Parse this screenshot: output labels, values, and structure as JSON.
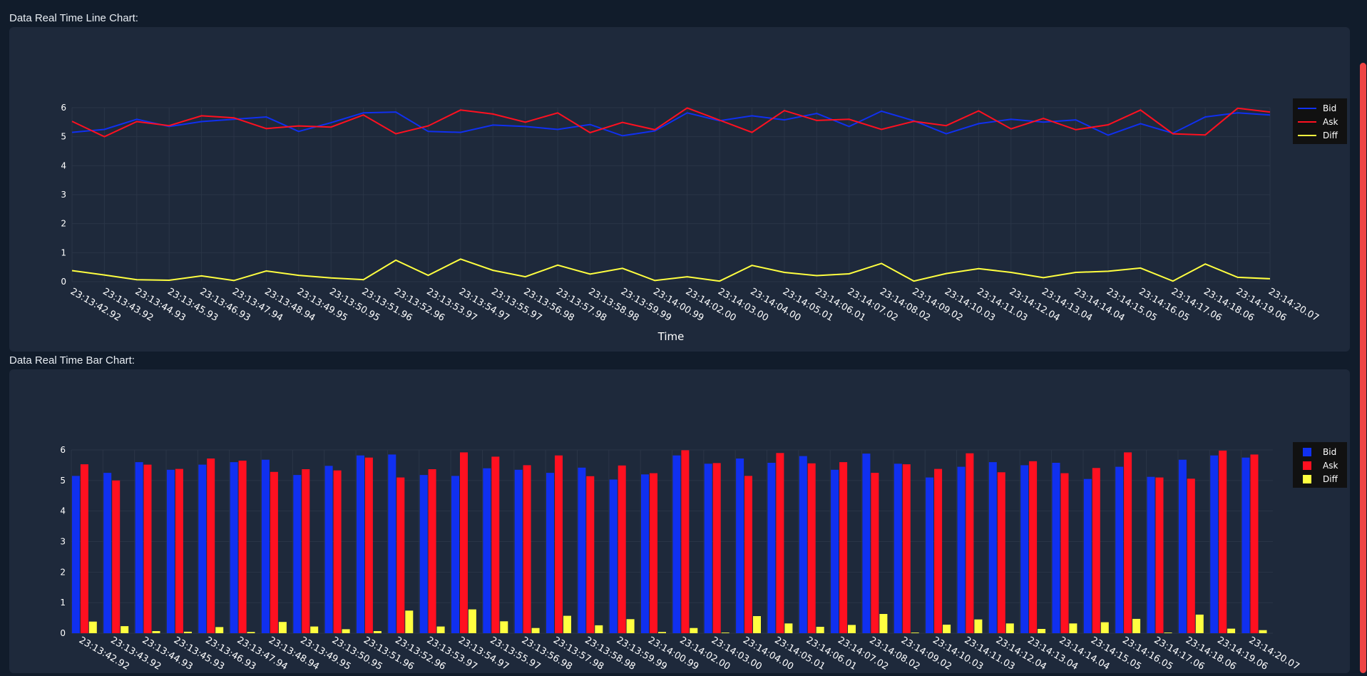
{
  "line_section": {
    "title": "Data Real Time Line Chart:"
  },
  "bar_section": {
    "title": "Data Real Time Bar Chart:"
  },
  "colors": {
    "bid": "#1030f0",
    "ask": "#ff1020",
    "diff": "#ffff40",
    "panel": "#1e293b",
    "page": "#111c2b",
    "scrollbar": "#ef4444"
  },
  "chart_data": [
    {
      "type": "line",
      "title": "",
      "xlabel": "Time",
      "ylabel": "",
      "ylim": [
        0,
        6
      ],
      "grid": true,
      "legend": "right",
      "categories": [
        "23:13:42.92",
        "23:13:43.92",
        "23:13:44.93",
        "23:13:45.93",
        "23:13:46.93",
        "23:13:47.94",
        "23:13:48.94",
        "23:13:49.95",
        "23:13:50.95",
        "23:13:51.96",
        "23:13:52.96",
        "23:13:53.97",
        "23:13:54.97",
        "23:13:55.97",
        "23:13:56.98",
        "23:13:57.98",
        "23:13:58.98",
        "23:13:59.99",
        "23:14:00.99",
        "23:14:02.00",
        "23:14:03.00",
        "23:14:04.00",
        "23:14:05.01",
        "23:14:06.01",
        "23:14:07.02",
        "23:14:08.02",
        "23:14:09.02",
        "23:14:10.03",
        "23:14:11.03",
        "23:14:12.04",
        "23:14:13.04",
        "23:14:14.04",
        "23:14:15.05",
        "23:14:16.05",
        "23:14:17.06",
        "23:14:18.06",
        "23:14:19.06",
        "23:14:20.07"
      ],
      "series": [
        {
          "name": "Bid",
          "values": [
            5.15,
            5.25,
            5.6,
            5.35,
            5.52,
            5.6,
            5.68,
            5.18,
            5.48,
            5.82,
            5.85,
            5.18,
            5.15,
            5.4,
            5.35,
            5.25,
            5.42,
            5.03,
            5.2,
            5.82,
            5.55,
            5.72,
            5.58,
            5.8,
            5.35,
            5.88,
            5.55,
            5.1,
            5.45,
            5.6,
            5.5,
            5.58,
            5.05,
            5.45,
            5.12,
            5.68,
            5.82,
            5.75
          ]
        },
        {
          "name": "Ask",
          "values": [
            5.53,
            5.0,
            5.52,
            5.38,
            5.72,
            5.65,
            5.28,
            5.37,
            5.33,
            5.75,
            5.1,
            5.37,
            5.92,
            5.78,
            5.5,
            5.82,
            5.14,
            5.49,
            5.24,
            5.99,
            5.57,
            5.15,
            5.9,
            5.56,
            5.6,
            5.25,
            5.53,
            5.38,
            5.89,
            5.27,
            5.63,
            5.24,
            5.41,
            5.92,
            5.1,
            5.06,
            5.98,
            5.85
          ]
        },
        {
          "name": "Diff",
          "values": [
            0.38,
            0.23,
            0.07,
            0.05,
            0.2,
            0.04,
            0.37,
            0.22,
            0.13,
            0.07,
            0.74,
            0.22,
            0.78,
            0.39,
            0.17,
            0.57,
            0.26,
            0.46,
            0.04,
            0.17,
            0.02,
            0.56,
            0.32,
            0.21,
            0.27,
            0.63,
            0.02,
            0.28,
            0.45,
            0.32,
            0.14,
            0.32,
            0.36,
            0.47,
            0.02,
            0.61,
            0.15,
            0.1
          ]
        }
      ]
    },
    {
      "type": "bar",
      "title": "",
      "xlabel": "",
      "ylabel": "",
      "ylim": [
        0,
        6
      ],
      "grid": true,
      "legend": "right",
      "categories": [
        "23:13:42.92",
        "23:13:43.92",
        "23:13:44.93",
        "23:13:45.93",
        "23:13:46.93",
        "23:13:47.94",
        "23:13:48.94",
        "23:13:49.95",
        "23:13:50.95",
        "23:13:51.96",
        "23:13:52.96",
        "23:13:53.97",
        "23:13:54.97",
        "23:13:55.97",
        "23:13:56.98",
        "23:13:57.98",
        "23:13:58.98",
        "23:13:59.99",
        "23:14:00.99",
        "23:14:02.00",
        "23:14:03.00",
        "23:14:04.00",
        "23:14:05.01",
        "23:14:06.01",
        "23:14:07.02",
        "23:14:08.02",
        "23:14:09.02",
        "23:14:10.03",
        "23:14:11.03",
        "23:14:12.04",
        "23:14:13.04",
        "23:14:14.04",
        "23:14:15.05",
        "23:14:16.05",
        "23:14:17.06",
        "23:14:18.06",
        "23:14:19.06",
        "23:14:20.07"
      ],
      "series": [
        {
          "name": "Bid",
          "values": [
            5.15,
            5.25,
            5.6,
            5.35,
            5.52,
            5.6,
            5.68,
            5.18,
            5.48,
            5.82,
            5.85,
            5.18,
            5.15,
            5.4,
            5.35,
            5.25,
            5.42,
            5.03,
            5.2,
            5.82,
            5.55,
            5.72,
            5.58,
            5.8,
            5.35,
            5.88,
            5.55,
            5.1,
            5.45,
            5.6,
            5.5,
            5.58,
            5.05,
            5.45,
            5.12,
            5.68,
            5.82,
            5.75
          ]
        },
        {
          "name": "Ask",
          "values": [
            5.53,
            5.0,
            5.52,
            5.38,
            5.72,
            5.65,
            5.28,
            5.37,
            5.33,
            5.75,
            5.1,
            5.37,
            5.92,
            5.78,
            5.5,
            5.82,
            5.14,
            5.49,
            5.24,
            5.99,
            5.57,
            5.15,
            5.9,
            5.56,
            5.6,
            5.25,
            5.53,
            5.38,
            5.89,
            5.27,
            5.63,
            5.24,
            5.41,
            5.92,
            5.1,
            5.06,
            5.98,
            5.85
          ]
        },
        {
          "name": "Diff",
          "values": [
            0.38,
            0.23,
            0.07,
            0.05,
            0.2,
            0.04,
            0.37,
            0.22,
            0.13,
            0.07,
            0.74,
            0.22,
            0.78,
            0.39,
            0.17,
            0.57,
            0.26,
            0.46,
            0.04,
            0.17,
            0.02,
            0.56,
            0.32,
            0.21,
            0.27,
            0.63,
            0.02,
            0.28,
            0.45,
            0.32,
            0.14,
            0.32,
            0.36,
            0.47,
            0.02,
            0.61,
            0.15,
            0.1
          ]
        }
      ]
    }
  ]
}
